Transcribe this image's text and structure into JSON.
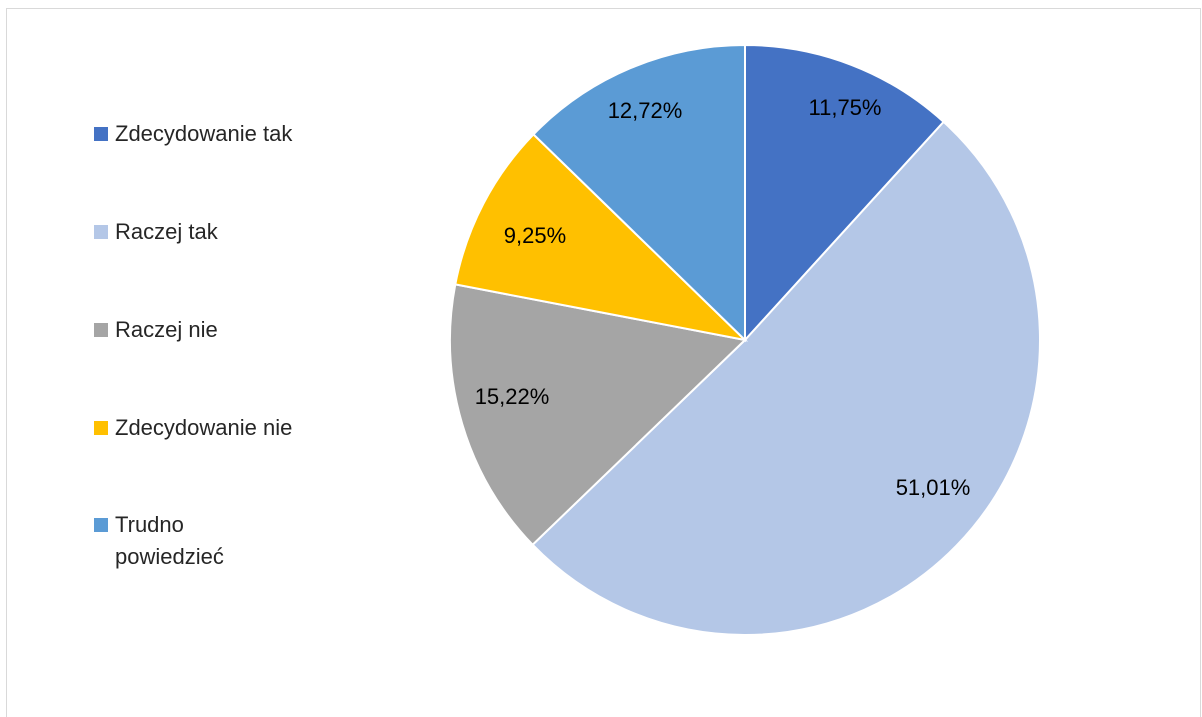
{
  "chart_data": {
    "type": "pie",
    "title": "",
    "categories": [
      "Zdecydowanie tak",
      "Raczej tak",
      "Raczej nie",
      "Zdecydowanie nie",
      "Trudno powiedzieć"
    ],
    "values": [
      11.75,
      51.01,
      15.22,
      9.25,
      12.72
    ],
    "data_labels": [
      "11,75%",
      "51,01%",
      "15,22%",
      "9,25%",
      "12,72%"
    ],
    "colors": [
      "#4472C4",
      "#B4C7E7",
      "#A5A5A5",
      "#FFC000",
      "#5B9BD5"
    ],
    "legend_position": "left"
  },
  "legend": {
    "items": [
      {
        "label": "Zdecydowanie tak",
        "color": "#4472C4"
      },
      {
        "label": "Raczej tak",
        "color": "#B4C7E7"
      },
      {
        "label": "Raczej nie",
        "color": "#A5A5A5"
      },
      {
        "label": "Zdecydowanie nie",
        "color": "#FFC000"
      },
      {
        "label": "Trudno powiedzieć",
        "color": "#5B9BD5"
      }
    ]
  }
}
